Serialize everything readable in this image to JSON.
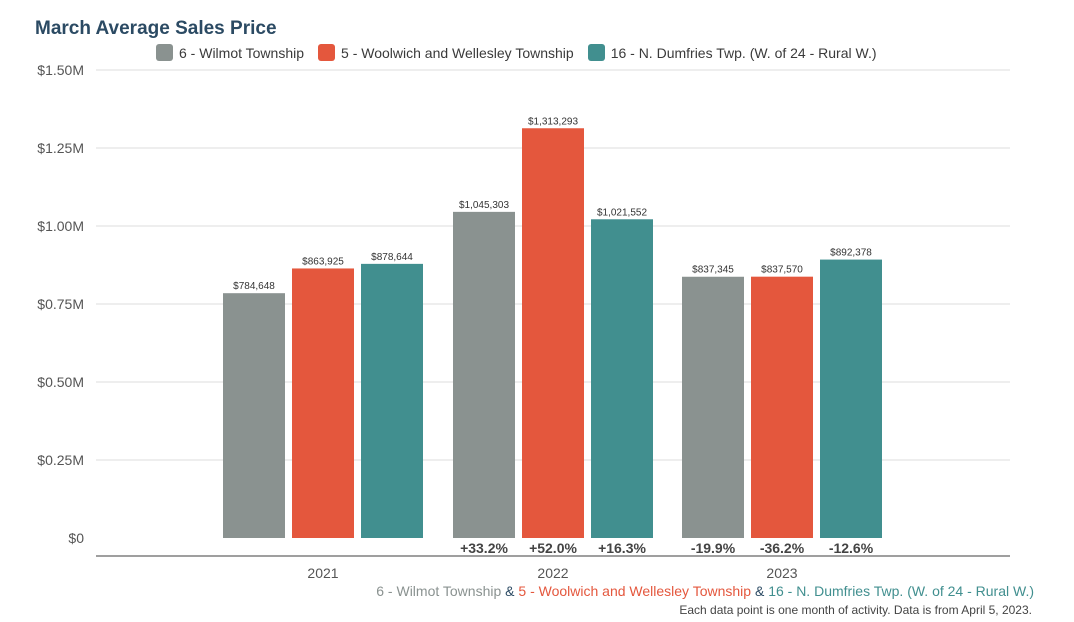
{
  "colors": {
    "series1": "#8a9290",
    "series2": "#e4573d",
    "series3": "#418f8f",
    "title": "#2b4a63",
    "axis_text": "#555555",
    "grid": "#dddddd",
    "baseline": "#666666"
  },
  "footer": {
    "s1": "6 - Wilmot Township",
    "amp1": " & ",
    "s2": "5 - Woolwich and Wellesley Township",
    "amp2": " & ",
    "s3": "16 - N. Dumfries Twp. (W. of 24 - Rural W.)",
    "note": "Each data point is one month of activity. Data is from April 5, 2023."
  },
  "chart_data": {
    "type": "bar",
    "title": "March Average Sales Price",
    "categories": [
      "2021",
      "2022",
      "2023"
    ],
    "ylim": [
      0,
      1500000
    ],
    "yticks": [
      0,
      250000,
      500000,
      750000,
      1000000,
      1250000,
      1500000
    ],
    "ytick_labels": [
      "$0",
      "$0.25M",
      "$0.50M",
      "$0.75M",
      "$1.00M",
      "$1.25M",
      "$1.50M"
    ],
    "grid": true,
    "legend_position": "top",
    "series": [
      {
        "name": "6 - Wilmot Township",
        "values": [
          784648,
          1045303,
          837345
        ],
        "labels": [
          "$784,648",
          "$1,045,303",
          "$837,345"
        ],
        "changes": [
          "",
          "+33.2%",
          "-19.9%"
        ]
      },
      {
        "name": "5 - Woolwich and Wellesley Township",
        "values": [
          863925,
          1313293,
          837570
        ],
        "labels": [
          "$863,925",
          "$1,313,293",
          "$837,570"
        ],
        "changes": [
          "",
          "+52.0%",
          "-36.2%"
        ]
      },
      {
        "name": "16 - N. Dumfries Twp. (W. of 24 - Rural W.)",
        "values": [
          878644,
          1021552,
          892378
        ],
        "labels": [
          "$878,644",
          "$1,021,552",
          "$892,378"
        ],
        "changes": [
          "",
          "+16.3%",
          "-12.6%"
        ]
      }
    ]
  }
}
